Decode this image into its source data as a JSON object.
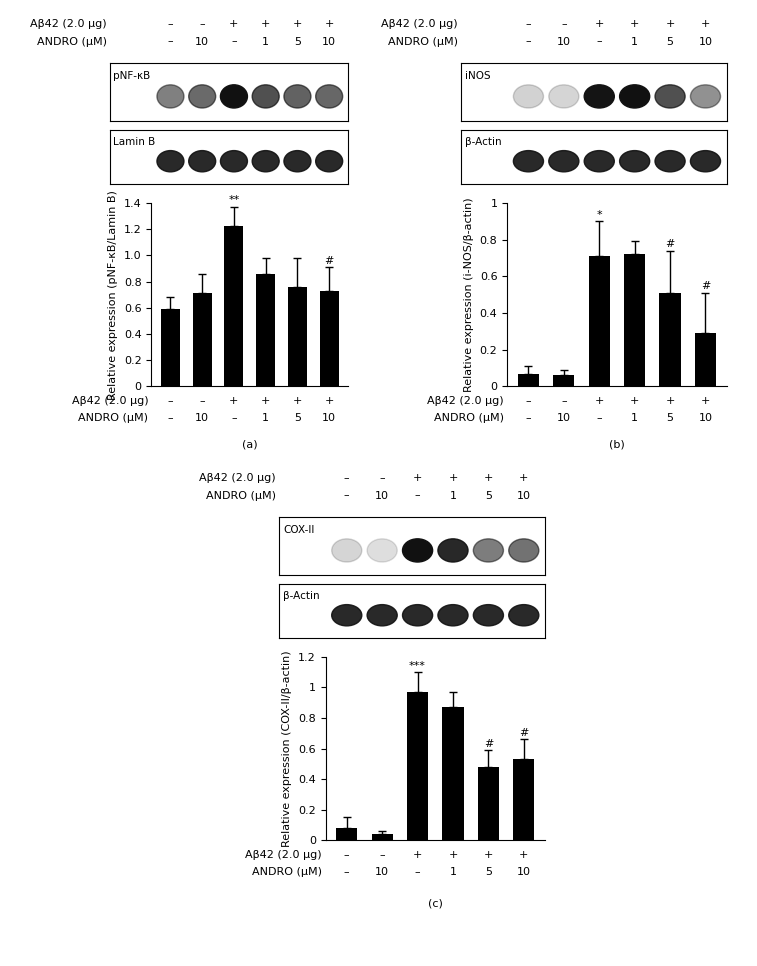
{
  "conditions": [
    {
      "label": "Aβ42 (2.0 μg)",
      "values": [
        "–",
        "–",
        "+",
        "+",
        "+",
        "+"
      ]
    },
    {
      "label": "ANDRO (μM)",
      "values": [
        "–",
        "10",
        "–",
        "1",
        "5",
        "10"
      ]
    }
  ],
  "chart_data": [
    {
      "type": "bar",
      "panel_label": "(a)",
      "blot_bands": [
        "pNF-κB",
        "Lamin B"
      ],
      "y_label": "Relative expression (pNF-κB/Lamin B)",
      "categories": [
        null,
        null,
        null,
        null,
        null,
        null
      ],
      "values": [
        0.59,
        0.71,
        1.22,
        0.86,
        0.76,
        0.73
      ],
      "errors": [
        0.09,
        0.15,
        0.15,
        0.12,
        0.22,
        0.18
      ],
      "annotations": [
        null,
        null,
        "**",
        null,
        null,
        "#"
      ],
      "color": "#000000",
      "grid": false,
      "ylim": [
        0,
        1.4
      ],
      "yticks": [
        0,
        0.2,
        0.4,
        0.6,
        0.8,
        1.0,
        1.2,
        1.4
      ]
    },
    {
      "type": "bar",
      "panel_label": "(b)",
      "blot_bands": [
        "iNOS",
        "β-Actin"
      ],
      "y_label": "Relative expression (i-NOS/β-actin)",
      "categories": [
        null,
        null,
        null,
        null,
        null,
        null
      ],
      "values": [
        0.07,
        0.06,
        0.71,
        0.72,
        0.51,
        0.29
      ],
      "errors": [
        0.04,
        0.03,
        0.19,
        0.07,
        0.23,
        0.22
      ],
      "annotations": [
        null,
        null,
        "*",
        null,
        "#",
        "#"
      ],
      "color": "#000000",
      "grid": false,
      "ylim": [
        0,
        1
      ],
      "yticks": [
        0,
        0.2,
        0.4,
        0.6,
        0.8,
        1
      ]
    },
    {
      "type": "bar",
      "panel_label": "(c)",
      "blot_bands": [
        "COX-II",
        "β-Actin"
      ],
      "y_label": "Relative expression (COX-II/β-actin)",
      "categories": [
        null,
        null,
        null,
        null,
        null,
        null
      ],
      "values": [
        0.08,
        0.04,
        0.97,
        0.87,
        0.48,
        0.53
      ],
      "errors": [
        0.07,
        0.02,
        0.13,
        0.1,
        0.11,
        0.13
      ],
      "annotations": [
        null,
        null,
        "***",
        null,
        "#",
        "#"
      ],
      "color": "#000000",
      "grid": false,
      "ylim": [
        0,
        1.2
      ],
      "yticks": [
        0,
        0.2,
        0.4,
        0.6,
        0.8,
        1,
        1.2
      ]
    }
  ]
}
